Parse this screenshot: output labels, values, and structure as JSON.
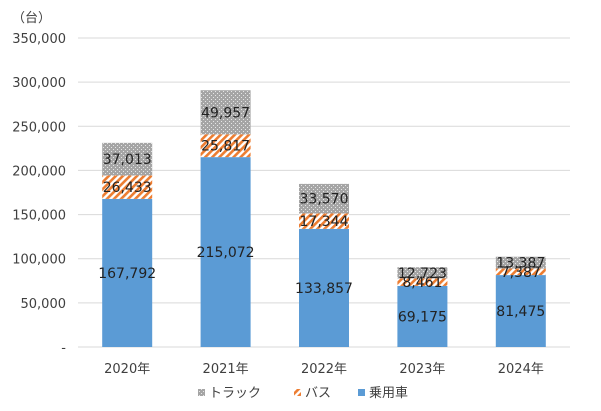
{
  "chart_data": {
    "type": "bar",
    "stacked": true,
    "unit_label": "（台）",
    "categories": [
      "2020年",
      "2021年",
      "2022年",
      "2023年",
      "2024年"
    ],
    "series": [
      {
        "name": "乗用車",
        "color": "#5b9bd5",
        "pattern": "solid",
        "values": [
          167792,
          215072,
          133857,
          69175,
          81475
        ],
        "labels": [
          "167,792",
          "215,072",
          "133,857",
          "69,175",
          "81,475"
        ]
      },
      {
        "name": "バス",
        "color": "#ed7d31",
        "pattern": "diagonal-hatch",
        "values": [
          26433,
          25817,
          17344,
          8461,
          7387
        ],
        "labels": [
          "26,433",
          "25,817",
          "17,344",
          "8,461",
          "7,387"
        ]
      },
      {
        "name": "トラック",
        "color": "#a5a5a5",
        "pattern": "dotted",
        "values": [
          37013,
          49957,
          33570,
          12723,
          13387
        ],
        "labels": [
          "37,013",
          "49,957",
          "33,570",
          "12,723",
          "13,387"
        ]
      }
    ],
    "ylim": [
      0,
      350000
    ],
    "ytick_values": [
      0,
      50000,
      100000,
      150000,
      200000,
      250000,
      300000,
      350000
    ],
    "ytick_labels": [
      "-",
      "50,000",
      "100,000",
      "150,000",
      "200,000",
      "250,000",
      "300,000",
      "350,000"
    ],
    "grid": true,
    "legend_position": "bottom",
    "legend_order": [
      "トラック",
      "バス",
      "乗用車"
    ]
  }
}
